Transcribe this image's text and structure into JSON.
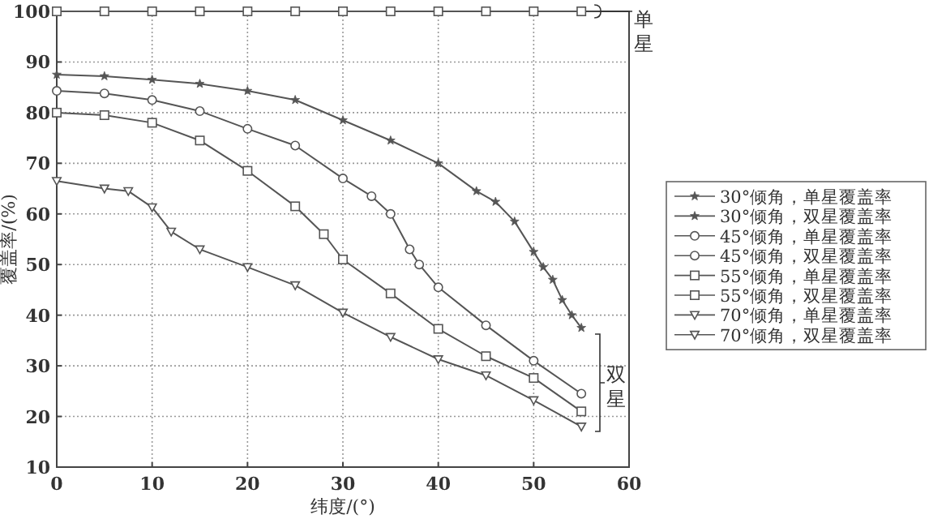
{
  "chart_data": {
    "type": "line",
    "xlabel": "纬度/(°)",
    "ylabel": "覆盖率/(%)",
    "xlim": [
      0,
      60
    ],
    "ylim": [
      10,
      100
    ],
    "xticks": [
      0,
      10,
      20,
      30,
      40,
      50,
      60
    ],
    "yticks": [
      10,
      20,
      30,
      40,
      50,
      60,
      70,
      80,
      90,
      100
    ],
    "grid": true,
    "legend": "right",
    "line_style": "solid",
    "series": [
      {
        "name": "30°倾角，单星覆盖率",
        "color": "#555555",
        "marker": "star",
        "values": [
          null,
          null,
          null,
          null,
          null,
          null,
          null,
          null,
          null,
          null,
          null,
          null
        ]
      },
      {
        "name": "30°倾角，双星覆盖率",
        "color": "#555555",
        "marker": "star",
        "x": [
          0,
          5,
          10,
          15,
          20,
          25,
          30,
          35,
          40,
          44,
          46,
          48,
          50,
          51,
          52,
          53,
          54,
          55
        ],
        "values": [
          87.5,
          87.2,
          86.5,
          85.7,
          84.3,
          82.5,
          78.5,
          74.5,
          70,
          64.5,
          62.4,
          58.5,
          52.5,
          49.5,
          47,
          43,
          40,
          37.5
        ]
      },
      {
        "name": "45°倾角，单星覆盖率",
        "color": "#555555",
        "marker": "circle",
        "values": [
          null,
          null,
          null,
          null,
          null,
          null,
          null,
          null,
          null,
          null,
          null,
          null
        ]
      },
      {
        "name": "45°倾角，双星覆盖率",
        "color": "#555555",
        "marker": "circle",
        "x": [
          0,
          5,
          10,
          15,
          20,
          25,
          30,
          33,
          35,
          37,
          38,
          40,
          45,
          50,
          55
        ],
        "values": [
          84.3,
          83.8,
          82.5,
          80.3,
          76.8,
          73.5,
          67,
          63.5,
          60,
          53,
          50,
          45.5,
          38,
          31,
          24.5
        ]
      },
      {
        "name": "55°倾角，单星覆盖率",
        "color": "#555555",
        "marker": "square",
        "x": [
          0,
          5,
          10,
          15,
          20,
          25,
          30,
          35,
          40,
          45,
          50,
          55
        ],
        "values": [
          100,
          100,
          100,
          100,
          100,
          100,
          100,
          100,
          100,
          100,
          100,
          100
        ]
      },
      {
        "name": "55°倾角，双星覆盖率",
        "color": "#555555",
        "marker": "square",
        "x": [
          0,
          5,
          10,
          15,
          20,
          25,
          28,
          30,
          35,
          40,
          45,
          50,
          55
        ],
        "values": [
          80,
          79.5,
          78,
          74.5,
          68.5,
          61.5,
          56,
          51,
          44.3,
          37.3,
          31.9,
          27.6,
          21
        ]
      },
      {
        "name": "70°倾角，单星覆盖率",
        "color": "#555555",
        "marker": "triangle",
        "values": [
          null,
          null,
          null,
          null,
          null,
          null,
          null,
          null,
          null,
          null,
          null,
          null
        ]
      },
      {
        "name": "70°倾角，双星覆盖率",
        "color": "#555555",
        "marker": "triangle",
        "x": [
          0,
          5,
          7.5,
          10,
          12,
          15,
          20,
          25,
          30,
          35,
          40,
          45,
          50,
          55
        ],
        "values": [
          66.5,
          65,
          64.5,
          61.3,
          56.5,
          53,
          49.5,
          45.9,
          40.5,
          35.7,
          31.3,
          28.1,
          23.2,
          18
        ]
      }
    ],
    "annotations": [
      {
        "text": "单星",
        "x": 55,
        "y": 100
      },
      "双星"
    ]
  }
}
